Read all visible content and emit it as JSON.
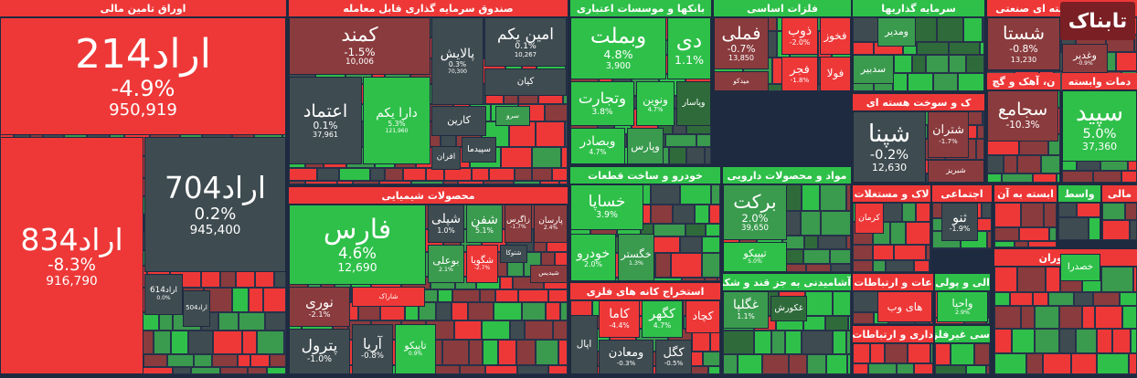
{
  "logo": "تابناک",
  "sectors": [
    {
      "title": "اوراق تامین مالی",
      "tiles": [
        {
          "name": "اراد214",
          "change": "-4.9%",
          "value": "950,919"
        },
        {
          "name": "اراد834",
          "change": "-8.3%",
          "value": "916,790"
        },
        {
          "name": "اراد704",
          "change": "0.2%",
          "value": "945,400"
        },
        {
          "name": "اراد614",
          "change": "0.0%"
        },
        {
          "name": "اراد504"
        }
      ]
    },
    {
      "title": "صندوق سرمایه گذاری قابل معامله",
      "tiles": [
        {
          "name": "کمند",
          "change": "-1.5%",
          "value": "10,006"
        },
        {
          "name": "پالایش",
          "change": "0.3%",
          "value": "70,300"
        },
        {
          "name": "امین یکم",
          "change": "0.1%",
          "value": "10,267"
        },
        {
          "name": "کیان"
        },
        {
          "name": "اعتماد",
          "change": "0.1%",
          "value": "37,961"
        },
        {
          "name": "دارا یکم",
          "change": "5.3%",
          "value": "121,960"
        },
        {
          "name": "کارین"
        },
        {
          "name": "سرو"
        },
        {
          "name": "سپیدما"
        },
        {
          "name": "افران"
        }
      ]
    },
    {
      "title": "محصولات شیمیایی",
      "tiles": [
        {
          "name": "فارس",
          "change": "4.6%",
          "value": "12,690"
        },
        {
          "name": "شپلی",
          "change": "1.0%"
        },
        {
          "name": "شفن",
          "change": "5.1%"
        },
        {
          "name": "زاگرس",
          "change": "-1.7%"
        },
        {
          "name": "پارسان",
          "change": "2.4%"
        },
        {
          "name": "بوعلی",
          "change": "2.1%"
        },
        {
          "name": "شگویا",
          "change": "-2.7%"
        },
        {
          "name": "شتوکا"
        },
        {
          "name": "شیدیس"
        },
        {
          "name": "شاراک"
        },
        {
          "name": "نوری",
          "change": "-2.1%"
        },
        {
          "name": "پترول",
          "change": "-1.0%"
        },
        {
          "name": "آریا",
          "change": "-0.8%"
        },
        {
          "name": "تاپیکو",
          "change": "0.9%"
        }
      ]
    },
    {
      "title": "بانکها و موسسات اعتباری",
      "tiles": [
        {
          "name": "وبملت",
          "change": "4.8%",
          "value": "3,900"
        },
        {
          "name": "دی",
          "change": "1.1%"
        },
        {
          "name": "وتجارت",
          "change": "3.8%"
        },
        {
          "name": "ونوین",
          "change": "4.7%"
        },
        {
          "name": "وپاسار"
        },
        {
          "name": "وبصادر",
          "change": "4.7%"
        },
        {
          "name": "وپارس"
        }
      ]
    },
    {
      "title": "فلزات اساسی",
      "tiles": [
        {
          "name": "فملی",
          "change": "-0.7%",
          "value": "13,850"
        },
        {
          "name": "ذوب",
          "change": "-2.0%"
        },
        {
          "name": "فخوز"
        },
        {
          "name": "فجر",
          "change": "-1.8%"
        },
        {
          "name": "فولا"
        },
        {
          "name": "میدکو"
        }
      ]
    },
    {
      "title": "سرمایه گذاریها",
      "tiles": [
        {
          "name": "ومدیر"
        },
        {
          "name": "سدبیر"
        }
      ]
    },
    {
      "title": "کتهای چند رشته ای صنعتی",
      "tiles": [
        {
          "name": "شستا",
          "change": "-0.8%",
          "value": "13,230"
        },
        {
          "name": "وغدیر",
          "change": "-0.9%"
        }
      ]
    },
    {
      "title": "ک و سوخت هسته ای",
      "tiles": [
        {
          "name": "شپنا",
          "change": "-0.2%",
          "value": "12,630"
        },
        {
          "name": "شتران",
          "change": "-1.7%"
        },
        {
          "name": "شبریز"
        }
      ]
    },
    {
      "title": "ن، آهک و گچ",
      "tiles": [
        {
          "name": "سجامع",
          "change": "-10.3%"
        }
      ]
    },
    {
      "title": "دمات وابسته",
      "tiles": [
        {
          "name": "سپید",
          "change": "5.0%",
          "value": "37,360"
        }
      ]
    },
    {
      "title": "خودرو و ساخت قطعات",
      "tiles": [
        {
          "name": "خساپا",
          "change": "3.9%"
        },
        {
          "name": "خودرو",
          "change": "2.0%"
        },
        {
          "name": "خگستر",
          "change": "1.3%"
        }
      ]
    },
    {
      "title": "مواد و محصولات دارویی",
      "tiles": [
        {
          "name": "برکت",
          "change": "2.0%",
          "value": "39,650"
        },
        {
          "name": "تیپیکو",
          "change": "5.0%"
        }
      ]
    },
    {
      "title": "استخراج کانه های فلزی",
      "tiles": [
        {
          "name": "کاما",
          "change": "-4.4%"
        },
        {
          "name": "کگهر",
          "change": "4.7%"
        },
        {
          "name": "کچاد"
        },
        {
          "name": "اپال"
        },
        {
          "name": "ومعادن",
          "change": "-0.3%"
        },
        {
          "name": "کگل",
          "change": "-0.5%"
        }
      ]
    },
    {
      "title": "آشامیدنی به جز قند و شکر",
      "tiles": [
        {
          "name": "غگلپا",
          "change": "1.1%"
        },
        {
          "name": "غکورش"
        }
      ]
    },
    {
      "title": "لاک و مستغلات",
      "tiles": [
        {
          "name": "کرمان"
        }
      ]
    },
    {
      "title": "اجتماعی",
      "tiles": [
        {
          "name": "ثنو",
          "change": "-1.9%"
        }
      ]
    },
    {
      "title": "ابسته به آن",
      "tiles": []
    },
    {
      "title": "واسط",
      "tiles": []
    },
    {
      "title": "مالی",
      "tiles": []
    },
    {
      "title": "عات و ارتباطات",
      "tiles": [
        {
          "name": "های وب"
        }
      ]
    },
    {
      "title": "الی و پولی",
      "tiles": [
        {
          "name": "واحیا",
          "change": "2.9%"
        }
      ]
    },
    {
      "title": "داری و ارتباطات",
      "tiles": []
    },
    {
      "title": "سی غیرفلزی",
      "tiles": []
    },
    {
      "title": "و رستوران",
      "tiles": [
        {
          "name": "خصدرا"
        }
      ]
    }
  ]
}
